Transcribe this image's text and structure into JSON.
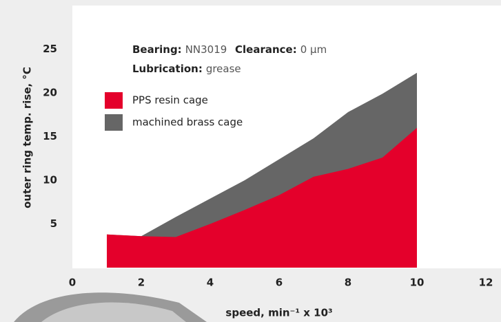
{
  "chart_data": {
    "type": "area",
    "annotations": [
      {
        "label": "Bearing:",
        "value": "NN3019"
      },
      {
        "label": "Clearance:",
        "value": "0 µm"
      },
      {
        "label": "Lubrication:",
        "value": "grease"
      }
    ],
    "xlabel": "speed, min⁻¹ x 10³",
    "ylabel": "outer ring temp. rise, °C",
    "x": [
      1,
      2,
      3,
      4,
      5,
      6,
      7,
      8,
      9,
      10
    ],
    "series": [
      {
        "name": "PPS resin cage",
        "color": "#e4002b",
        "values": [
          3.8,
          3.6,
          3.5,
          5.0,
          6.6,
          8.3,
          10.4,
          11.3,
          12.6,
          16.0
        ]
      },
      {
        "name": "machined brass cage",
        "color": "#666666",
        "values": [
          3.8,
          3.6,
          5.8,
          7.9,
          10.0,
          12.4,
          14.8,
          17.8,
          19.9,
          22.3
        ]
      }
    ],
    "xlim": [
      0,
      12
    ],
    "xticks": [
      0,
      2,
      4,
      6,
      8,
      10,
      12
    ],
    "ylim": [
      0,
      30
    ],
    "yticks": [
      5,
      10,
      15,
      20,
      25
    ]
  }
}
